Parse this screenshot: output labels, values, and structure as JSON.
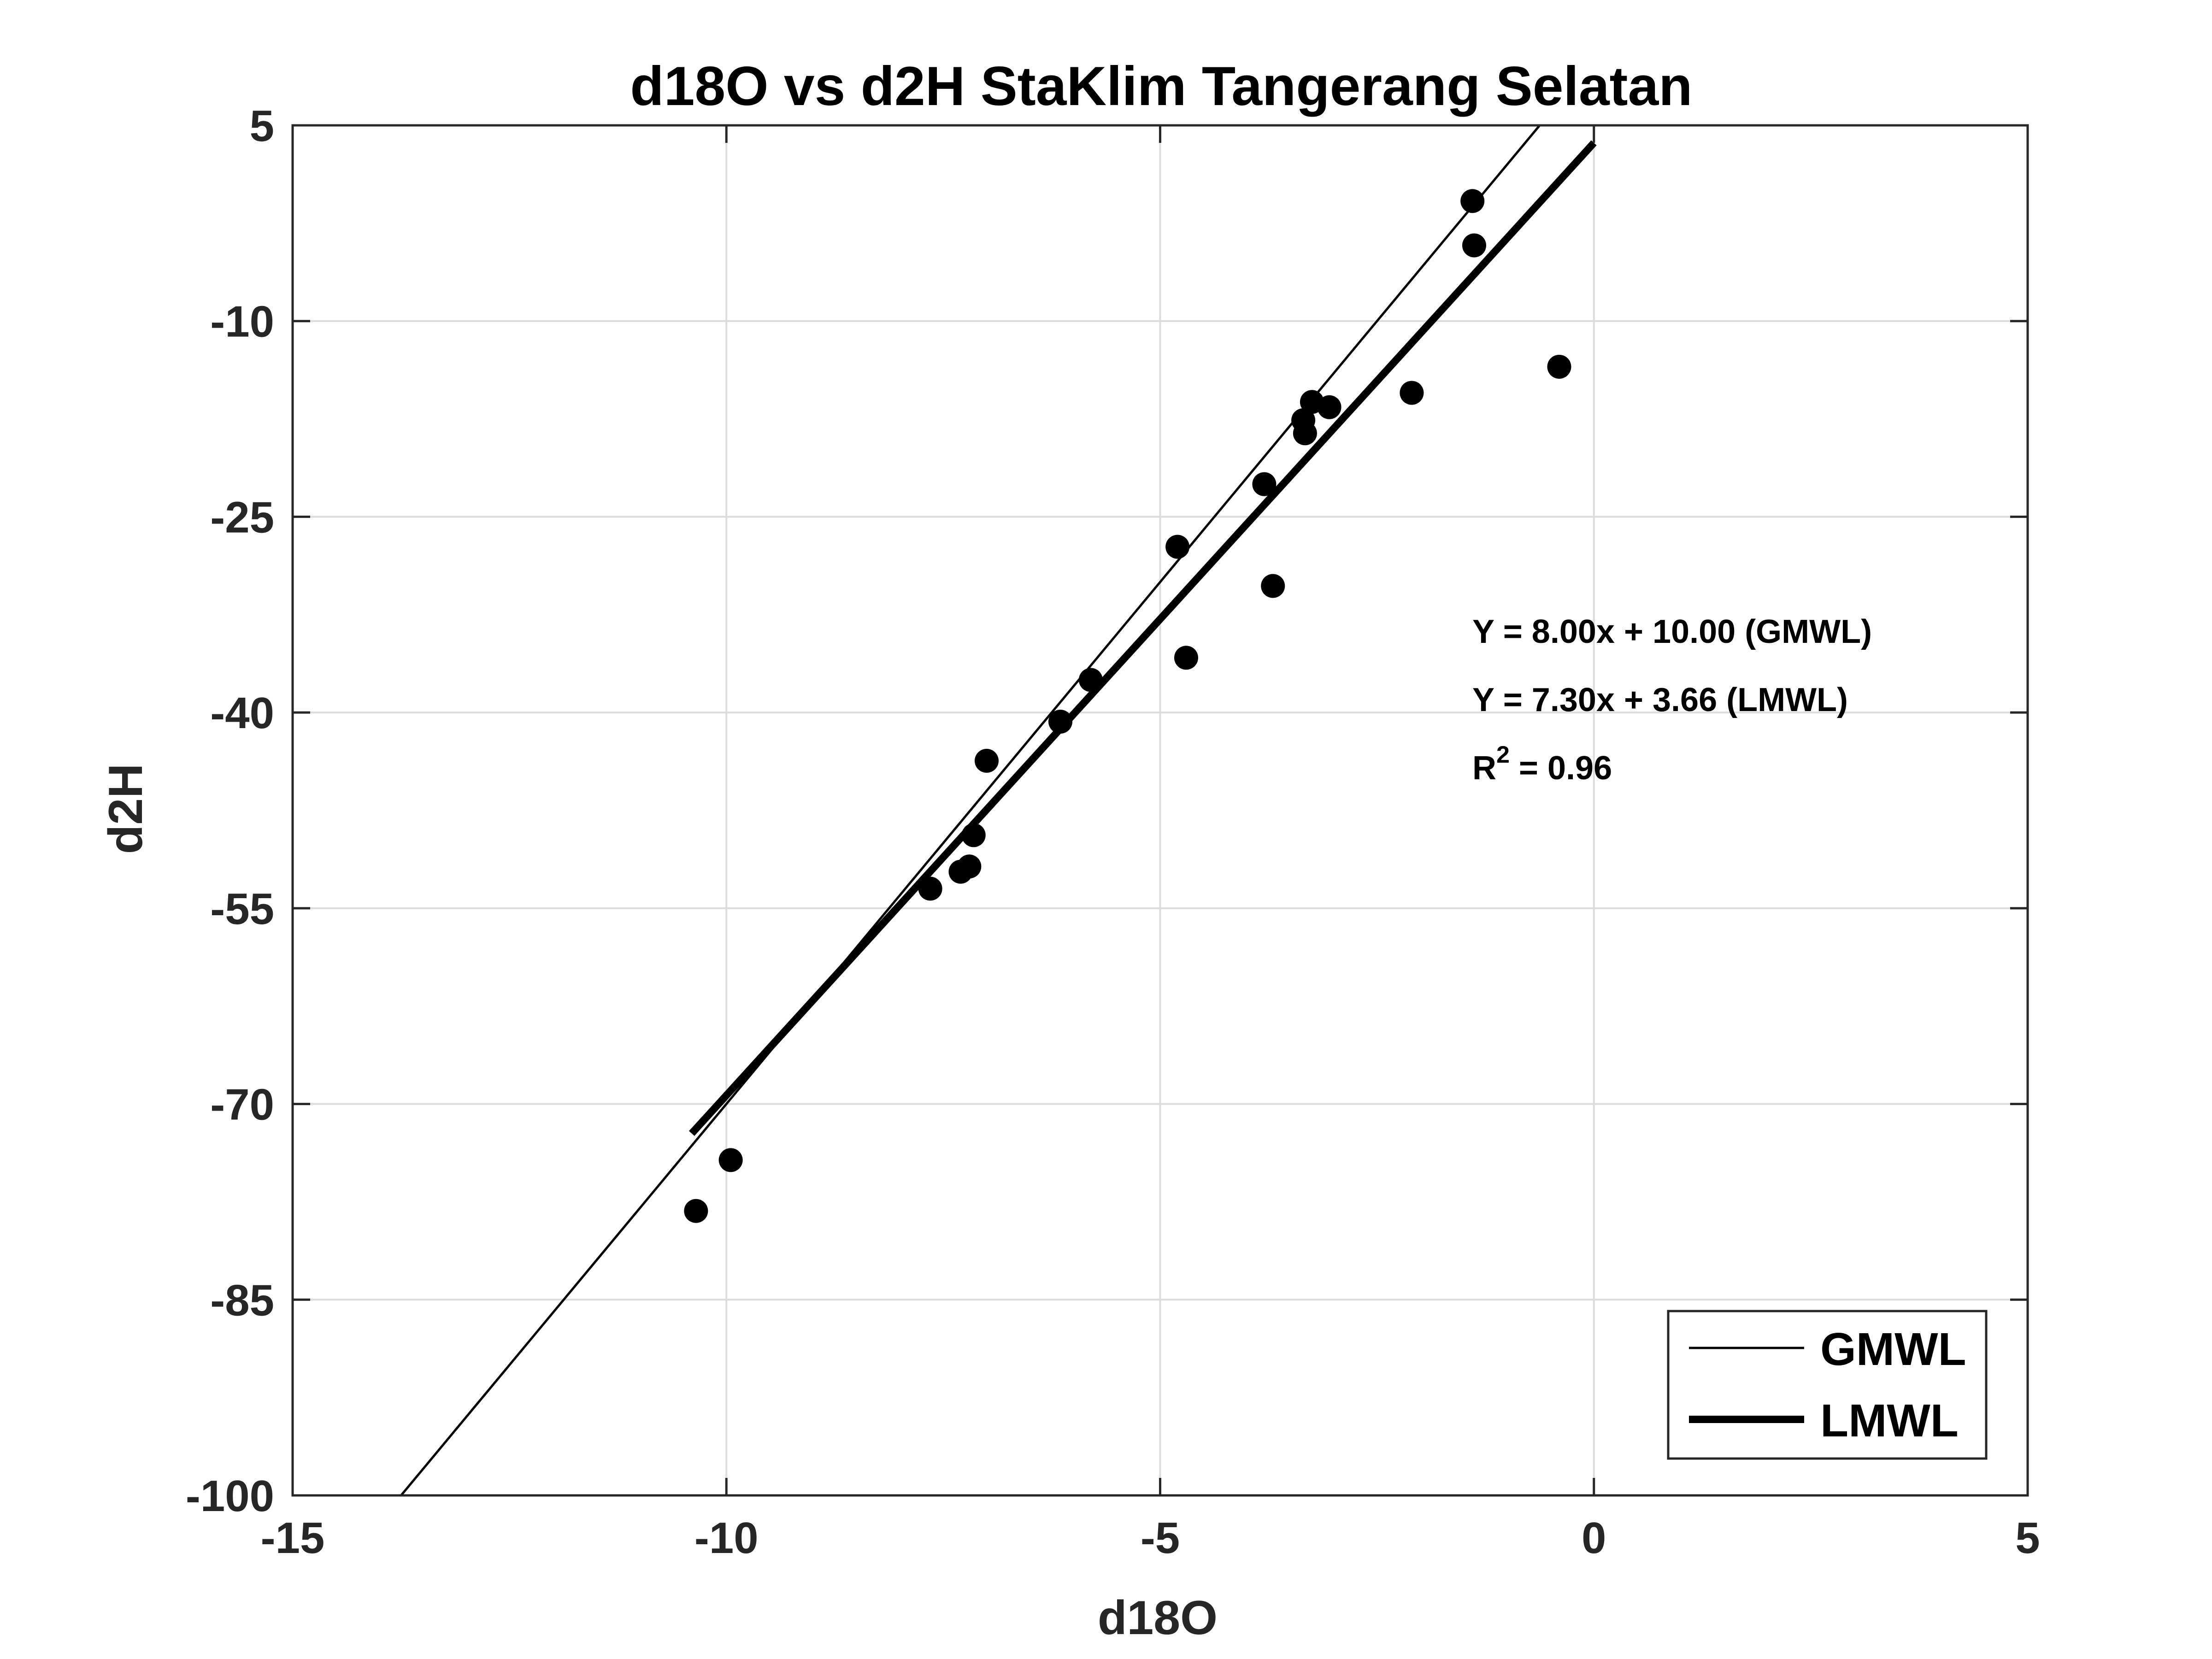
{
  "chart_data": {
    "type": "scatter",
    "title": "d18O vs d2H StaKlim Tangerang Selatan",
    "xlabel": "d18O",
    "ylabel": "d2H",
    "xlim": [
      -15,
      5
    ],
    "ylim": [
      -100,
      5
    ],
    "xticks": [
      -15,
      -10,
      -5,
      0,
      5
    ],
    "yticks": [
      -100,
      -85,
      -70,
      -55,
      -40,
      -25,
      -10,
      5
    ],
    "grid": true,
    "legend_position": "bottom-right",
    "series": [
      {
        "name": "",
        "kind": "points",
        "color": "#000000",
        "points": [
          [
            -10.35,
            -78.2
          ],
          [
            -9.95,
            -74.3
          ],
          [
            -7.65,
            -53.5
          ],
          [
            -7.3,
            -52.2
          ],
          [
            -7.2,
            -51.8
          ],
          [
            -7.15,
            -49.4
          ],
          [
            -7.0,
            -43.7
          ],
          [
            -6.15,
            -40.7
          ],
          [
            -5.8,
            -37.5
          ],
          [
            -4.8,
            -27.3
          ],
          [
            -4.7,
            -35.8
          ],
          [
            -3.8,
            -22.5
          ],
          [
            -3.7,
            -30.3
          ],
          [
            -3.35,
            -17.6
          ],
          [
            -3.33,
            -18.6
          ],
          [
            -3.25,
            -16.2
          ],
          [
            -3.05,
            -16.6
          ],
          [
            -2.1,
            -15.5
          ],
          [
            -1.4,
            -0.8
          ],
          [
            -1.38,
            -4.2
          ],
          [
            -0.4,
            -13.5
          ]
        ]
      },
      {
        "name": "GMWL",
        "kind": "line",
        "slope": 8.0,
        "intercept": 10.0,
        "x_range": [
          -13.75,
          -0.625
        ],
        "color": "#000000"
      },
      {
        "name": "LMWL",
        "kind": "line",
        "slope": 7.3,
        "intercept": 3.66,
        "x_range": [
          -10.4,
          0
        ],
        "color": "#000000"
      }
    ],
    "annotations": [
      {
        "text": "Y = 8.00x + 10.00 (GMWL)",
        "superscript": ""
      },
      {
        "text": "Y = 7.30x + 3.66 (LMWL)",
        "superscript": ""
      },
      {
        "text": "R",
        "superscript": "2",
        "suffix": " = 0.96"
      }
    ]
  }
}
